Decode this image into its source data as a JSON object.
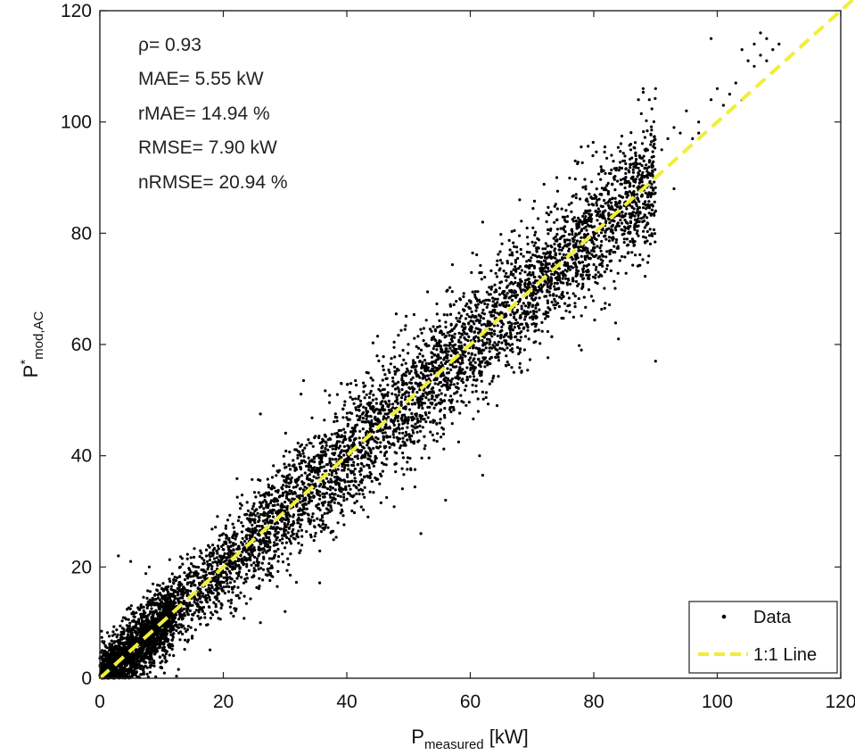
{
  "chart_data": {
    "type": "scatter",
    "title": "",
    "xlabel": {
      "main": "P",
      "sub": "measured",
      "unit": " [kW]"
    },
    "ylabel": {
      "main": "P",
      "sup": "*",
      "sub": "mod,AC"
    },
    "xlim": [
      0,
      120
    ],
    "ylim": [
      0,
      120
    ],
    "xticks": [
      0,
      20,
      40,
      60,
      80,
      100,
      120
    ],
    "yticks": [
      0,
      20,
      40,
      60,
      80,
      100,
      120
    ],
    "grid": false,
    "legend_position": "bottom-right",
    "stats": [
      "ρ= 0.93",
      "MAE= 5.55 kW",
      "rMAE= 14.94 %",
      "RMSE= 7.90 kW",
      "nRMSE= 20.94 %"
    ],
    "series": [
      {
        "name": "Data",
        "kind": "scatter",
        "color": "#000000",
        "distribution": {
          "n": 6500,
          "x_range": [
            0,
            90
          ],
          "relation": "y ≈ x",
          "spread_sd": 4.5
        },
        "points": [
          [
            90,
            57
          ],
          [
            62,
            36.5
          ],
          [
            61.5,
            40
          ],
          [
            56,
            32
          ],
          [
            33,
            53.5
          ],
          [
            26,
            47.5
          ],
          [
            48,
            65.5
          ],
          [
            62,
            82
          ],
          [
            68,
            86
          ],
          [
            74,
            90
          ],
          [
            77,
            93
          ],
          [
            78,
            59
          ],
          [
            84,
            61
          ],
          [
            45,
            61.5
          ],
          [
            57,
            61
          ],
          [
            52,
            26
          ],
          [
            3,
            22
          ],
          [
            5,
            21
          ],
          [
            8,
            20
          ],
          [
            26,
            10
          ],
          [
            30,
            12
          ],
          [
            89,
            85
          ],
          [
            90,
            84
          ],
          [
            86,
            95
          ],
          [
            94,
            98
          ],
          [
            96,
            97
          ],
          [
            97,
            100
          ],
          [
            99,
            104
          ],
          [
            100,
            106
          ],
          [
            101,
            103
          ],
          [
            102,
            102
          ],
          [
            103,
            107
          ],
          [
            104,
            104
          ],
          [
            102,
            105
          ],
          [
            105,
            111
          ],
          [
            106,
            114
          ],
          [
            107,
            112
          ],
          [
            108,
            115
          ],
          [
            109,
            113
          ],
          [
            110,
            114
          ],
          [
            106,
            110
          ],
          [
            107,
            116
          ],
          [
            104,
            113
          ],
          [
            108,
            111
          ],
          [
            99,
            115
          ],
          [
            88,
            106
          ],
          [
            89,
            104
          ],
          [
            90,
            106
          ],
          [
            93,
            99
          ],
          [
            95,
            102
          ],
          [
            97,
            98
          ],
          [
            92,
            97
          ],
          [
            91,
            95
          ],
          [
            86,
            96
          ],
          [
            85,
            93
          ],
          [
            93,
            88
          ]
        ]
      },
      {
        "name": "1:1 Line",
        "kind": "line",
        "color": "#f0ee3a",
        "dash": true,
        "points": [
          [
            0,
            0
          ],
          [
            122,
            122
          ]
        ]
      }
    ]
  }
}
